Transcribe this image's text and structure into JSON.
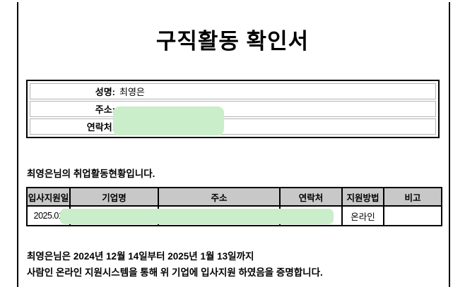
{
  "page": {
    "title": "구직활동 확인서"
  },
  "info_box": {
    "rows": [
      {
        "label": "성명:",
        "value": "최영은"
      },
      {
        "label": "주소:",
        "value": ""
      },
      {
        "label": "연락처:",
        "value": ""
      }
    ]
  },
  "activity_heading": "최영은님의 취업활동현황입니다.",
  "table": {
    "headers": [
      "입사지원일",
      "기업명",
      "주소",
      "연락처",
      "지원방법",
      "비고"
    ],
    "row": {
      "apply_date": "2025.01",
      "company": "",
      "address": "",
      "contact": "",
      "apply_method": "온라인",
      "note": ""
    }
  },
  "footer": {
    "line1": "최영은님은 2024년 12월 14일부터 2025년 1월 13일까지",
    "line2": "사람인 온라인 지원시스템을 통해 위 기업에 입사지원 하였음을 증명합니다."
  },
  "colors": {
    "redaction_green": "#c9eec9",
    "table_header_gray": "#c8c8c8",
    "border_black": "#000000",
    "info_row_border_gray": "#b3b3b3"
  }
}
